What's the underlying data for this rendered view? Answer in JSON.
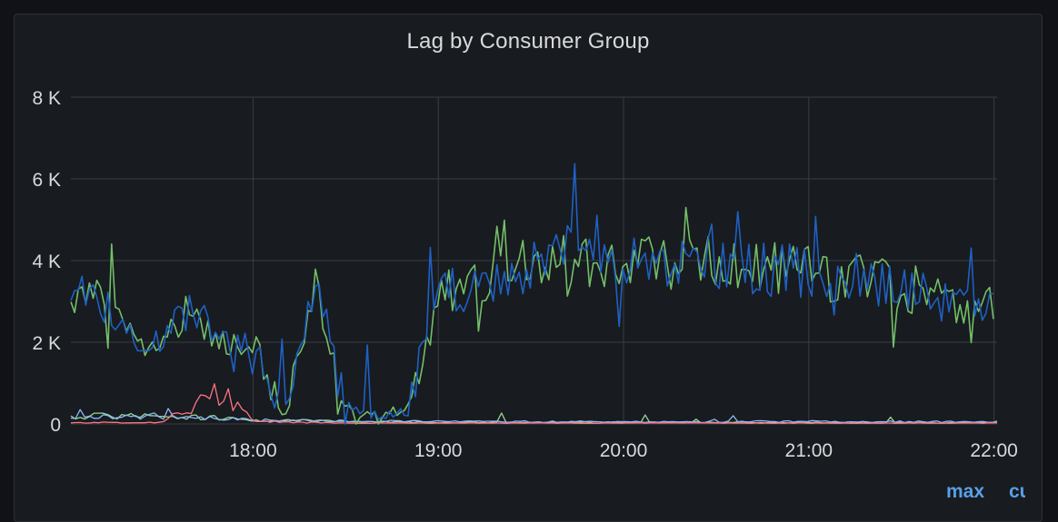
{
  "panel": {
    "title": "Lag by Consumer Group"
  },
  "legend": {
    "columns": [
      "max",
      "current"
    ]
  },
  "chart_data": {
    "type": "line",
    "title": "Lag by Consumer Group",
    "x_ticks": [
      "18:00",
      "19:00",
      "20:00",
      "21:00",
      "22:00"
    ],
    "y_ticks": [
      "0",
      "2 K",
      "4 K",
      "6 K",
      "8 K"
    ],
    "xlim": [
      "17:01",
      "22:01"
    ],
    "ylim": [
      0,
      8000
    ],
    "grid": true,
    "series": [
      {
        "color": "#1f60c4",
        "x": [
          "17:00",
          "17:10",
          "17:20",
          "17:30",
          "17:40",
          "17:50",
          "18:00",
          "18:10",
          "18:20",
          "18:30",
          "18:40",
          "18:50",
          "19:00",
          "19:10",
          "19:20",
          "19:30",
          "19:40",
          "19:50",
          "20:00",
          "20:10",
          "20:20",
          "20:30",
          "20:40",
          "20:50",
          "21:00",
          "21:10",
          "21:20",
          "21:30",
          "21:40",
          "21:50",
          "22:00"
        ],
        "values": [
          3300,
          3200,
          2200,
          2000,
          2800,
          2100,
          2000,
          200,
          3600,
          400,
          200,
          300,
          3200,
          3300,
          3500,
          3800,
          4100,
          4200,
          3800,
          4100,
          3900,
          4000,
          3800,
          3800,
          3700,
          3600,
          3500,
          3300,
          3000,
          3000,
          2700
        ]
      },
      {
        "color": "#73bf69",
        "x": [
          "17:00",
          "17:10",
          "17:20",
          "17:30",
          "17:40",
          "17:50",
          "18:00",
          "18:10",
          "18:20",
          "18:30",
          "18:40",
          "18:50",
          "19:00",
          "19:10",
          "19:20",
          "19:30",
          "19:40",
          "19:50",
          "20:00",
          "20:10",
          "20:20",
          "20:30",
          "20:40",
          "20:50",
          "21:00",
          "21:10",
          "21:20",
          "21:30",
          "21:40",
          "21:50",
          "22:00"
        ],
        "values": [
          3200,
          3100,
          2100,
          1900,
          2900,
          2000,
          2100,
          250,
          3400,
          350,
          250,
          350,
          3000,
          3300,
          3600,
          3900,
          4100,
          4100,
          3900,
          4000,
          4000,
          4000,
          3900,
          3800,
          3800,
          3600,
          3500,
          3300,
          3100,
          3000,
          2800
        ]
      },
      {
        "color": "#ff7383",
        "x": [
          "17:00",
          "17:30",
          "17:50",
          "18:00",
          "18:30",
          "19:00",
          "20:00",
          "21:00",
          "22:00"
        ],
        "values": [
          30,
          40,
          800,
          60,
          20,
          20,
          20,
          20,
          20
        ]
      },
      {
        "color": "#8ab8ff",
        "x": [
          "17:00",
          "17:30",
          "17:50",
          "18:00",
          "18:30",
          "19:00",
          "20:00",
          "21:00",
          "22:00"
        ],
        "values": [
          150,
          200,
          120,
          100,
          80,
          60,
          50,
          60,
          50
        ]
      },
      {
        "color": "#96d98d",
        "x": [
          "17:00",
          "17:30",
          "17:50",
          "18:00",
          "18:30",
          "19:00",
          "20:00",
          "21:00",
          "22:00"
        ],
        "values": [
          200,
          180,
          150,
          100,
          60,
          40,
          40,
          40,
          30
        ]
      }
    ]
  }
}
